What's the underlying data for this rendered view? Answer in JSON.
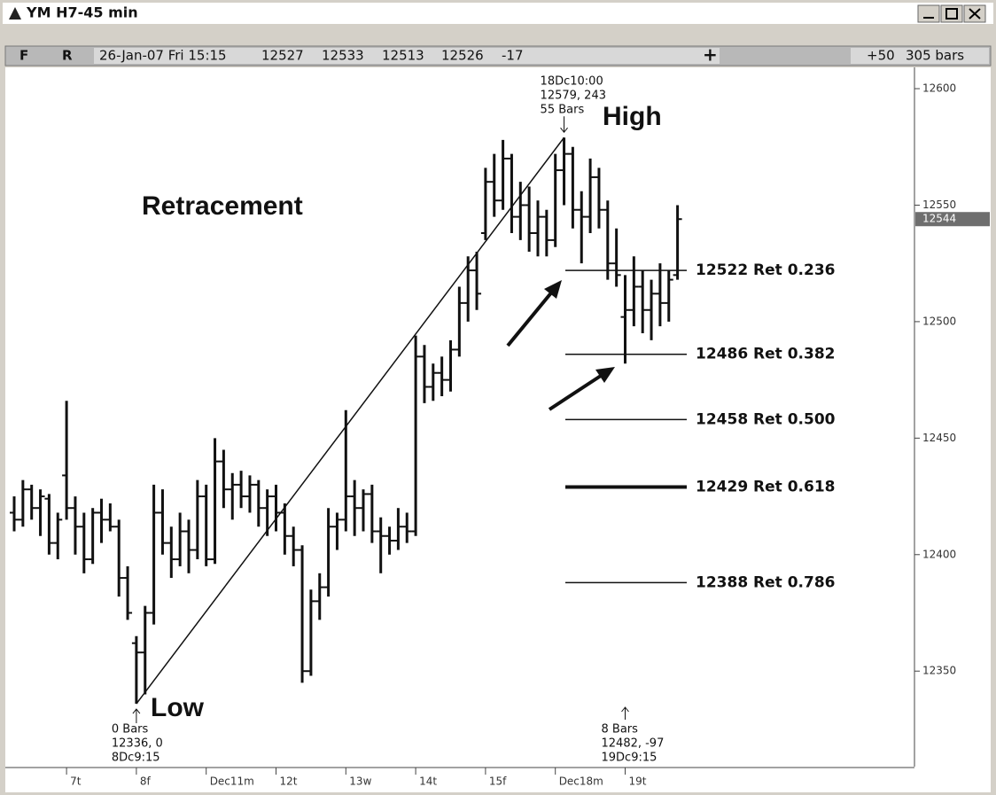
{
  "window": {
    "title": "YM H7-45 min"
  },
  "toolbar": {
    "flags": [
      "F",
      "R"
    ],
    "datetime": "26-Jan-07 Fri 15:15",
    "quote": [
      "12527",
      "12533",
      "12513",
      "12526",
      "-17"
    ],
    "cross": "+",
    "offset": "+50",
    "bars": "305 bars"
  },
  "chart_data": {
    "type": "ohlc",
    "categories": [
      null,
      null,
      null,
      null,
      null,
      null,
      "7t",
      null,
      null,
      null,
      null,
      null,
      null,
      null,
      "8f",
      null,
      null,
      null,
      null,
      null,
      null,
      null,
      "Dec11m",
      null,
      null,
      null,
      null,
      null,
      null,
      null,
      "12t",
      null,
      null,
      null,
      null,
      null,
      null,
      null,
      "13w",
      null,
      null,
      null,
      null,
      null,
      null,
      null,
      "14t",
      null,
      null,
      null,
      null,
      null,
      null,
      null,
      "15f",
      null,
      null,
      null,
      null,
      null,
      null,
      null,
      "Dec18m",
      null,
      null,
      null,
      null,
      null,
      null,
      null,
      "19t",
      null,
      null,
      null,
      null,
      null,
      null
    ],
    "open": [
      12418,
      12415,
      12428,
      12420,
      12424,
      12405,
      12434,
      12420,
      12412,
      12398,
      12418,
      12415,
      12412,
      12390,
      12362,
      12358,
      12375,
      12418,
      12405,
      12398,
      12410,
      12402,
      12425,
      12398,
      12440,
      12428,
      12430,
      12425,
      12430,
      12420,
      12425,
      12418,
      12408,
      12402,
      12350,
      12380,
      12386,
      12412,
      12415,
      12425,
      12420,
      12426,
      12410,
      12408,
      12406,
      12412,
      12410,
      12485,
      12472,
      12478,
      12475,
      12488,
      12508,
      12522,
      12538,
      12560,
      12552,
      12570,
      12545,
      12550,
      12538,
      12545,
      12535,
      12565,
      12572,
      12548,
      12545,
      12562,
      12548,
      12525,
      12502,
      12505,
      12515,
      12505,
      12512,
      12508,
      12520
    ],
    "high": [
      12425,
      12432,
      12430,
      12428,
      12426,
      12418,
      12466,
      12425,
      12418,
      12420,
      12424,
      12422,
      12415,
      12395,
      12365,
      12378,
      12430,
      12428,
      12412,
      12418,
      12415,
      12432,
      12430,
      12450,
      12445,
      12435,
      12436,
      12434,
      12432,
      12428,
      12430,
      12422,
      12412,
      12404,
      12385,
      12392,
      12420,
      12418,
      12462,
      12432,
      12428,
      12430,
      12416,
      12412,
      12420,
      12418,
      12494,
      12490,
      12482,
      12485,
      12492,
      12515,
      12528,
      12530,
      12566,
      12572,
      12578,
      12572,
      12560,
      12558,
      12552,
      12548,
      12572,
      12579,
      12575,
      12556,
      12570,
      12566,
      12552,
      12540,
      12520,
      12528,
      12522,
      12518,
      12525,
      12522,
      12550
    ],
    "low": [
      12410,
      12412,
      12415,
      12408,
      12400,
      12398,
      12415,
      12400,
      12392,
      12396,
      12405,
      12410,
      12382,
      12372,
      12336,
      12340,
      12370,
      12400,
      12390,
      12395,
      12392,
      12398,
      12395,
      12396,
      12420,
      12415,
      12420,
      12418,
      12412,
      12408,
      12410,
      12400,
      12395,
      12345,
      12348,
      12372,
      12382,
      12402,
      12410,
      12408,
      12410,
      12405,
      12392,
      12400,
      12402,
      12405,
      12408,
      12465,
      12466,
      12468,
      12470,
      12485,
      12500,
      12505,
      12535,
      12545,
      12548,
      12538,
      12535,
      12530,
      12528,
      12528,
      12532,
      12550,
      12540,
      12525,
      12538,
      12540,
      12518,
      12515,
      12482,
      12498,
      12495,
      12492,
      12498,
      12500,
      12518
    ],
    "close": [
      12415,
      12428,
      12420,
      12425,
      12405,
      12415,
      12420,
      12412,
      12398,
      12418,
      12415,
      12412,
      12390,
      12375,
      12358,
      12375,
      12418,
      12405,
      12398,
      12410,
      12402,
      12425,
      12398,
      12440,
      12428,
      12430,
      12425,
      12430,
      12420,
      12425,
      12418,
      12408,
      12402,
      12350,
      12380,
      12386,
      12412,
      12415,
      12425,
      12420,
      12426,
      12410,
      12408,
      12406,
      12412,
      12410,
      12485,
      12472,
      12478,
      12475,
      12488,
      12508,
      12522,
      12512,
      12560,
      12552,
      12570,
      12545,
      12550,
      12538,
      12545,
      12535,
      12565,
      12572,
      12548,
      12545,
      12562,
      12548,
      12525,
      12520,
      12505,
      12515,
      12505,
      12512,
      12508,
      12518,
      12544
    ],
    "color": "#111111",
    "ylim": [
      12309,
      12608
    ],
    "yticks": [
      12350,
      12400,
      12450,
      12500,
      12550,
      12600
    ],
    "grid": false,
    "last_price": 12544,
    "retracements": [
      {
        "value": 12522,
        "label": "12522 Ret 0.236"
      },
      {
        "value": 12486,
        "label": "12486 Ret 0.382"
      },
      {
        "value": 12458,
        "label": "12458 Ret 0.500"
      },
      {
        "value": 12429,
        "label": "12429 Ret 0.618"
      },
      {
        "value": 12388,
        "label": "12388 Ret 0.786"
      }
    ],
    "annotations": {
      "title": "Retracement",
      "high": "High",
      "low": "Low",
      "high_info": [
        "18Dc10:00",
        "12579, 243",
        "55 Bars"
      ],
      "low_info": [
        "0 Bars",
        "12336, 0",
        "8Dc9:15"
      ],
      "pullback_info": [
        "8 Bars",
        "12482, -97",
        "19Dc9:15"
      ]
    }
  }
}
